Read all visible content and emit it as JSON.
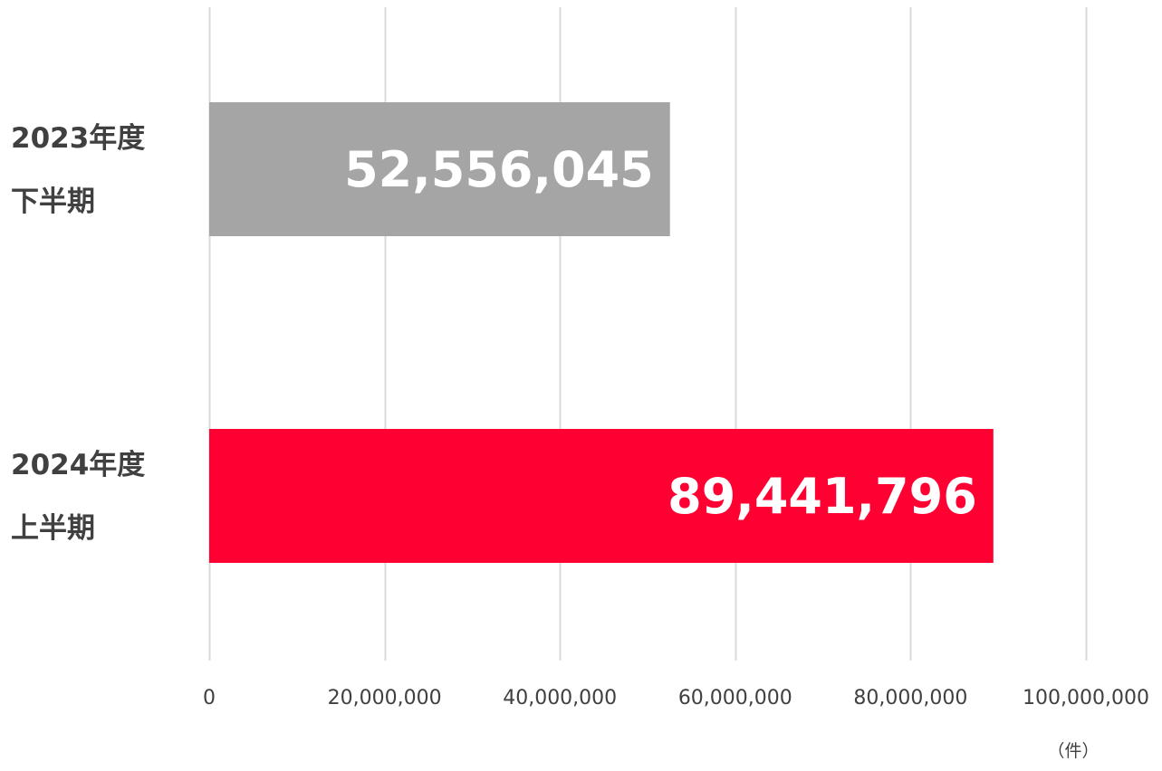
{
  "chart_data": {
    "type": "bar",
    "orientation": "horizontal",
    "categories": [
      [
        "2023年度",
        "下半期"
      ],
      [
        "2024年度",
        "上半期"
      ]
    ],
    "values": [
      52556045,
      89441796
    ],
    "value_labels": [
      "52,556,045",
      "89,441,796"
    ],
    "bar_colors": [
      "#a5a5a5",
      "#ff0033"
    ],
    "xlim": [
      0,
      100000000
    ],
    "x_ticks": [
      0,
      20000000,
      40000000,
      60000000,
      80000000,
      100000000
    ],
    "x_tick_labels": [
      "0",
      "20,000,000",
      "40,000,000",
      "60,000,000",
      "80,000,000",
      "100,000,000"
    ],
    "unit": "（件）",
    "grid": true,
    "gridline_color": "#d9d9d9"
  }
}
